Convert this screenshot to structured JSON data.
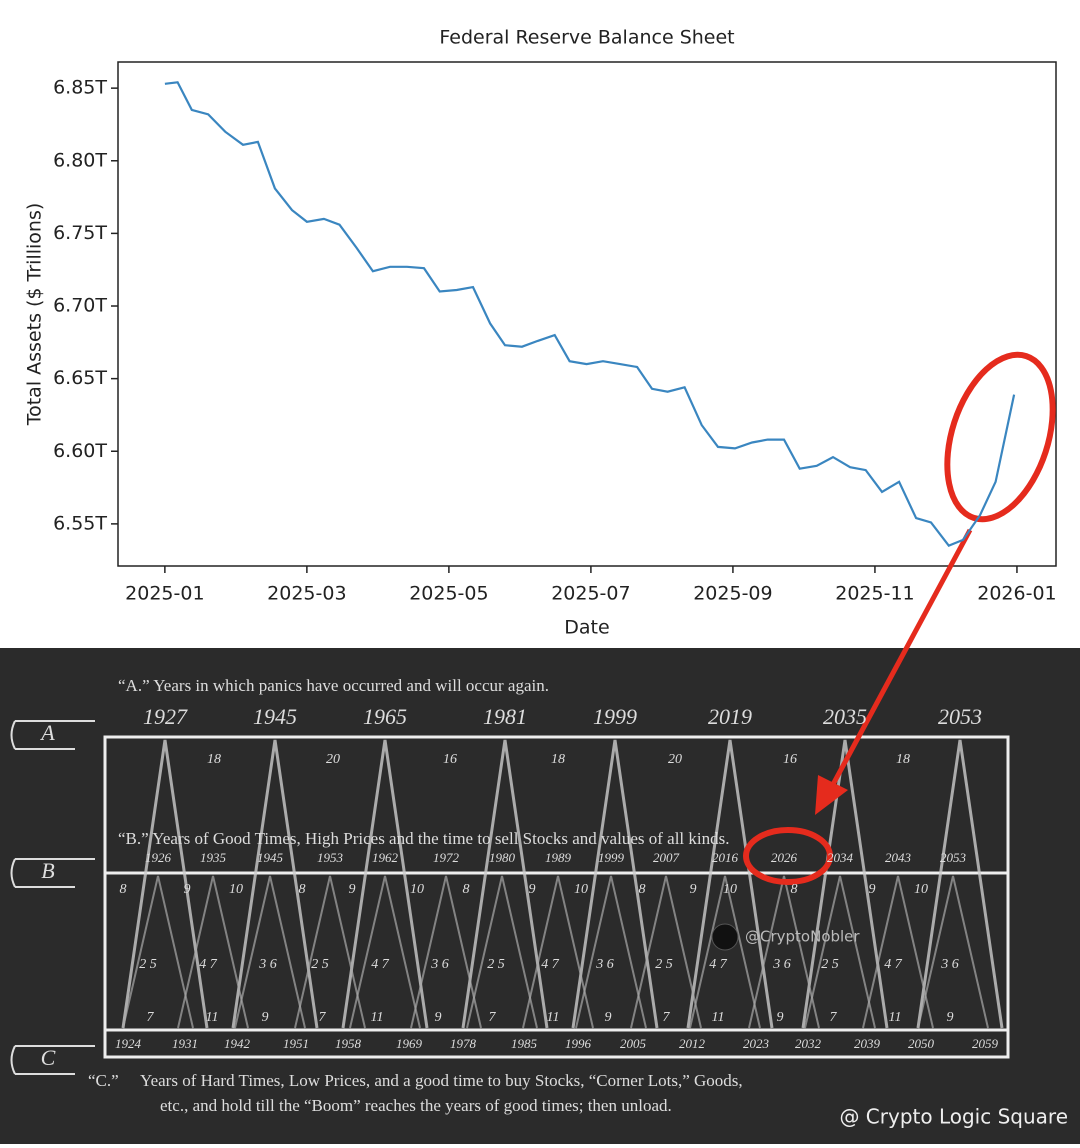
{
  "chart_data": {
    "type": "line",
    "title": "Federal Reserve Balance Sheet",
    "x_label": "Date",
    "y_label": "Total Assets ($ Trillions)",
    "x": [
      0,
      0.18,
      0.38,
      0.61,
      0.85,
      1.1,
      1.31,
      1.55,
      1.79,
      2.0,
      2.24,
      2.46,
      2.7,
      2.93,
      3.17,
      3.41,
      3.65,
      3.87,
      4.11,
      4.34,
      4.58,
      4.79,
      5.03,
      5.25,
      5.49,
      5.7,
      5.94,
      6.17,
      6.41,
      6.65,
      6.86,
      7.08,
      7.32,
      7.56,
      7.79,
      8.03,
      8.27,
      8.49,
      8.72,
      8.94,
      9.18,
      9.41,
      9.65,
      9.87,
      10.1,
      10.34,
      10.58,
      10.79,
      11.04,
      11.24,
      11.48,
      11.7,
      11.96
    ],
    "series": [
      {
        "color": "#3a86c0",
        "values": [
          6.853,
          6.854,
          6.835,
          6.832,
          6.82,
          6.811,
          6.813,
          6.781,
          6.766,
          6.758,
          6.76,
          6.756,
          6.74,
          6.724,
          6.727,
          6.727,
          6.726,
          6.71,
          6.711,
          6.713,
          6.688,
          6.673,
          6.672,
          6.676,
          6.68,
          6.662,
          6.66,
          6.662,
          6.66,
          6.658,
          6.643,
          6.641,
          6.644,
          6.618,
          6.603,
          6.602,
          6.606,
          6.608,
          6.608,
          6.588,
          6.59,
          6.596,
          6.589,
          6.587,
          6.572,
          6.579,
          6.554,
          6.551,
          6.535,
          6.539,
          6.556,
          6.579,
          6.639
        ]
      }
    ],
    "xlim": [
      -0.66,
      12.55
    ],
    "xticks": [
      {
        "value": 0,
        "label": "2025-01"
      },
      {
        "value": 2,
        "label": "2025-03"
      },
      {
        "value": 4,
        "label": "2025-05"
      },
      {
        "value": 6,
        "label": "2025-07"
      },
      {
        "value": 8,
        "label": "2025-09"
      },
      {
        "value": 10,
        "label": "2025-11"
      },
      {
        "value": 12,
        "label": "2026-01"
      }
    ],
    "ylim": [
      6.521,
      6.868
    ],
    "yticks": [
      {
        "value": 6.55,
        "label": "6.55T"
      },
      {
        "value": 6.6,
        "label": "6.60T"
      },
      {
        "value": 6.65,
        "label": "6.65T"
      },
      {
        "value": 6.7,
        "label": "6.70T"
      },
      {
        "value": 6.75,
        "label": "6.75T"
      },
      {
        "value": 6.8,
        "label": "6.80T"
      },
      {
        "value": 6.85,
        "label": "6.85T"
      }
    ]
  },
  "diagram": {
    "a_text": "“A.” Years in which panics have occurred and will occur again.",
    "a_years": [
      "1927",
      "1945",
      "1965",
      "1981",
      "1999",
      "2019",
      "2035",
      "2053"
    ],
    "a_intervals": [
      "18",
      "20",
      "16",
      "18",
      "20",
      "16",
      "18"
    ],
    "b_text": "“B.” Years of Good Times, High Prices and the time to sell Stocks and values of all kinds.",
    "b_years": [
      "1926",
      "1935",
      "1945",
      "1953",
      "1962",
      "1972",
      "1980",
      "1989",
      "1999",
      "2007",
      "2016",
      "2026",
      "2034",
      "2043",
      "2053"
    ],
    "top_numbers": [
      "8",
      "9",
      "10",
      "8",
      "9",
      "10",
      "8",
      "9",
      "10",
      "8",
      "9",
      "10",
      "8",
      "9",
      "10"
    ],
    "middle_numbers": [
      "2 5",
      "4 7",
      "3 6",
      "2 5",
      "4 7",
      "3 6",
      "2 5",
      "4 7",
      "3 6",
      "2 5",
      "4 7",
      "3 6",
      "2 5",
      "4 7",
      "3 6"
    ],
    "bottom_numbers": [
      "7",
      "11",
      "9",
      "7",
      "11",
      "9",
      "7",
      "11",
      "9",
      "7",
      "11",
      "9",
      "7",
      "11",
      "9"
    ],
    "c_years": [
      "1924",
      "1931",
      "1942",
      "1951",
      "1958",
      "1969",
      "1978",
      "1985",
      "1996",
      "2005",
      "2012",
      "2023",
      "2032",
      "2039",
      "2050",
      "2059"
    ],
    "c_marker": "“C.”",
    "c_text": [
      "Years of Hard Times, Low Prices, and a good time to buy Stocks, “Corner Lots,” Goods,",
      "etc., and hold till  the “Boom” reaches the years of good times; then unload."
    ],
    "hand_labels": [
      "A",
      "B",
      "C"
    ],
    "watermark": "@CryptoNobler",
    "credit": "@ Crypto Logic Square"
  }
}
